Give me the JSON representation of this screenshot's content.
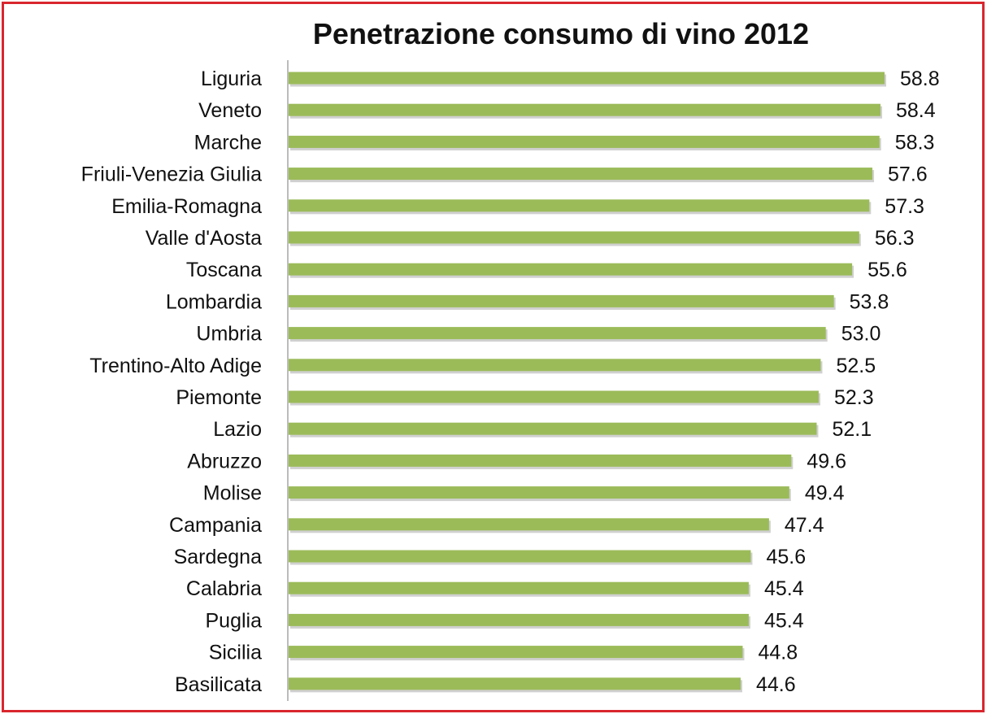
{
  "colors": {
    "border": "#d9262e",
    "bar": "#9bbb59",
    "axis": "#a6a6a6"
  },
  "chart_data": {
    "type": "bar",
    "orientation": "horizontal",
    "title": "Penetrazione consumo di vino 2012",
    "categories": [
      "Liguria",
      "Veneto",
      "Marche",
      "Friuli-Venezia Giulia",
      "Emilia-Romagna",
      "Valle d'Aosta",
      "Toscana",
      "Lombardia",
      "Umbria",
      "Trentino-Alto Adige",
      "Piemonte",
      "Lazio",
      "Abruzzo",
      "Molise",
      "Campania",
      "Sardegna",
      "Calabria",
      "Puglia",
      "Sicilia",
      "Basilicata"
    ],
    "values": [
      58.8,
      58.4,
      58.3,
      57.6,
      57.3,
      56.3,
      55.6,
      53.8,
      53.0,
      52.5,
      52.3,
      52.1,
      49.6,
      49.4,
      47.4,
      45.6,
      45.4,
      45.4,
      44.8,
      44.6
    ],
    "value_labels": [
      "58.8",
      "58.4",
      "58.3",
      "57.6",
      "57.3",
      "56.3",
      "55.6",
      "53.8",
      "53.0",
      "52.5",
      "52.3",
      "52.1",
      "49.6",
      "49.4",
      "47.4",
      "45.6",
      "45.4",
      "45.4",
      "44.8",
      "44.6"
    ],
    "xlim": [
      0,
      58.8
    ],
    "grid": false,
    "legend": "none"
  }
}
